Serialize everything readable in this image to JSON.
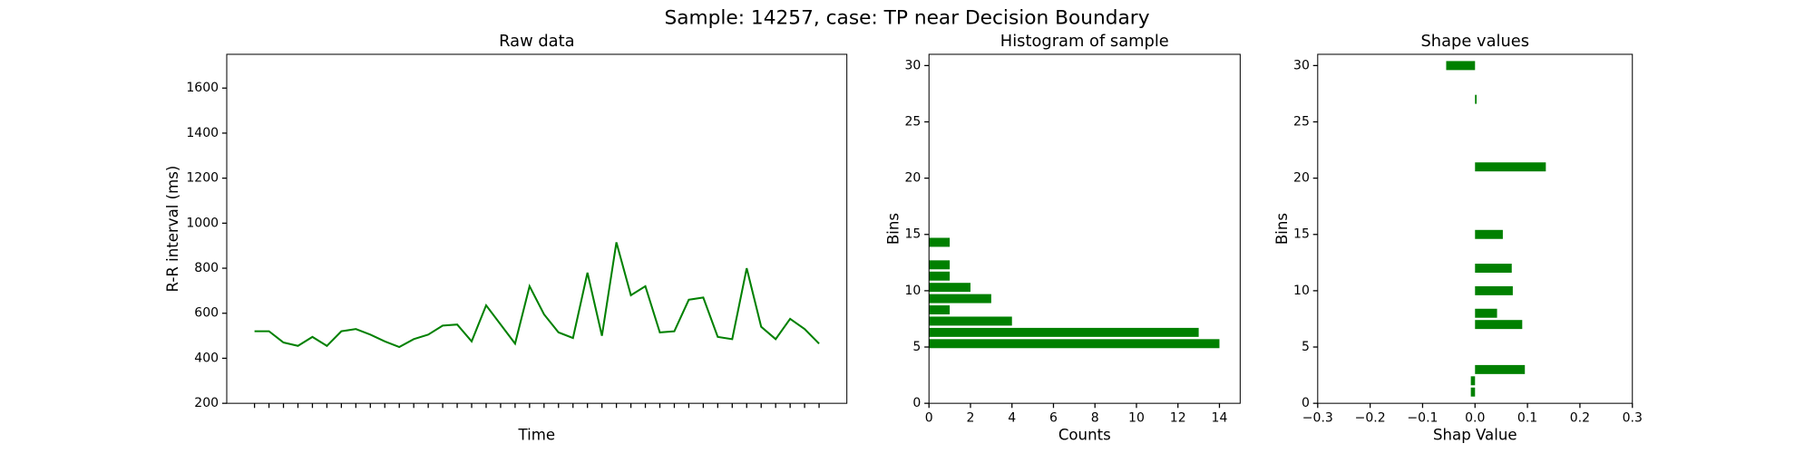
{
  "title": "Sample: 14257, case: TP near Decision Boundary",
  "chart_data": [
    {
      "type": "line",
      "title": "Raw data",
      "xlabel": "Time",
      "ylabel": "R-R interval (ms)",
      "categories": [
        null,
        null,
        null,
        null,
        null,
        null,
        null,
        null,
        null,
        null,
        null,
        null,
        null,
        null,
        null,
        null,
        null,
        null,
        null,
        null,
        null,
        null,
        null,
        null,
        null,
        null,
        null,
        null,
        null,
        null,
        null,
        null,
        null,
        null,
        null,
        null,
        null,
        null,
        null,
        null
      ],
      "series": [
        {
          "color": "#008000",
          "values": [
            520,
            520,
            470,
            455,
            495,
            455,
            520,
            530,
            505,
            475,
            450,
            485,
            505,
            545,
            550,
            475,
            635,
            550,
            465,
            720,
            595,
            515,
            490,
            780,
            500,
            915,
            680,
            720,
            515,
            520,
            660,
            670,
            495,
            485,
            800,
            540,
            485,
            575,
            530,
            465
          ]
        }
      ],
      "ylim": [
        200,
        1750
      ],
      "yticks": [
        200,
        400,
        600,
        800,
        1000,
        1200,
        1400,
        1600
      ]
    },
    {
      "type": "histogram",
      "orientation": "horizontal",
      "title": "Histogram of sample",
      "xlabel": "Counts",
      "ylabel": "Bins",
      "color": "#008000",
      "bins": [
        4.8,
        5.8,
        6.8,
        7.8,
        8.8,
        9.8,
        10.8,
        11.8,
        12.8,
        13.8,
        14.8
      ],
      "values": [
        14,
        13,
        4,
        1,
        3,
        2,
        1,
        1,
        0,
        1
      ],
      "xlim": [
        0,
        15
      ],
      "xticks": [
        0,
        2,
        4,
        6,
        8,
        10,
        12,
        14
      ],
      "ylim": [
        0,
        31
      ],
      "yticks": [
        0,
        5,
        10,
        15,
        20,
        25,
        30
      ]
    },
    {
      "type": "barh",
      "title": "Shape values",
      "xlabel": "Shap Value",
      "ylabel": "Bins",
      "color": "#008000",
      "y": [
        1,
        2,
        3,
        7,
        8,
        10,
        12,
        15,
        21,
        27,
        30
      ],
      "values": [
        -0.008,
        -0.008,
        0.095,
        0.09,
        0.042,
        0.072,
        0.07,
        0.053,
        0.135,
        0.003,
        -0.055
      ],
      "xlim": [
        -0.3,
        0.3
      ],
      "xticks": [
        {
          "value": -0.3,
          "label": "−0.3"
        },
        {
          "value": -0.2,
          "label": "−0.2"
        },
        {
          "value": -0.1,
          "label": "−0.1"
        },
        {
          "value": 0,
          "label": "0.0"
        },
        0.1,
        0.2,
        0.3
      ],
      "ylim": [
        0,
        31
      ],
      "yticks": [
        0,
        5,
        10,
        15,
        20,
        25,
        30
      ]
    }
  ]
}
